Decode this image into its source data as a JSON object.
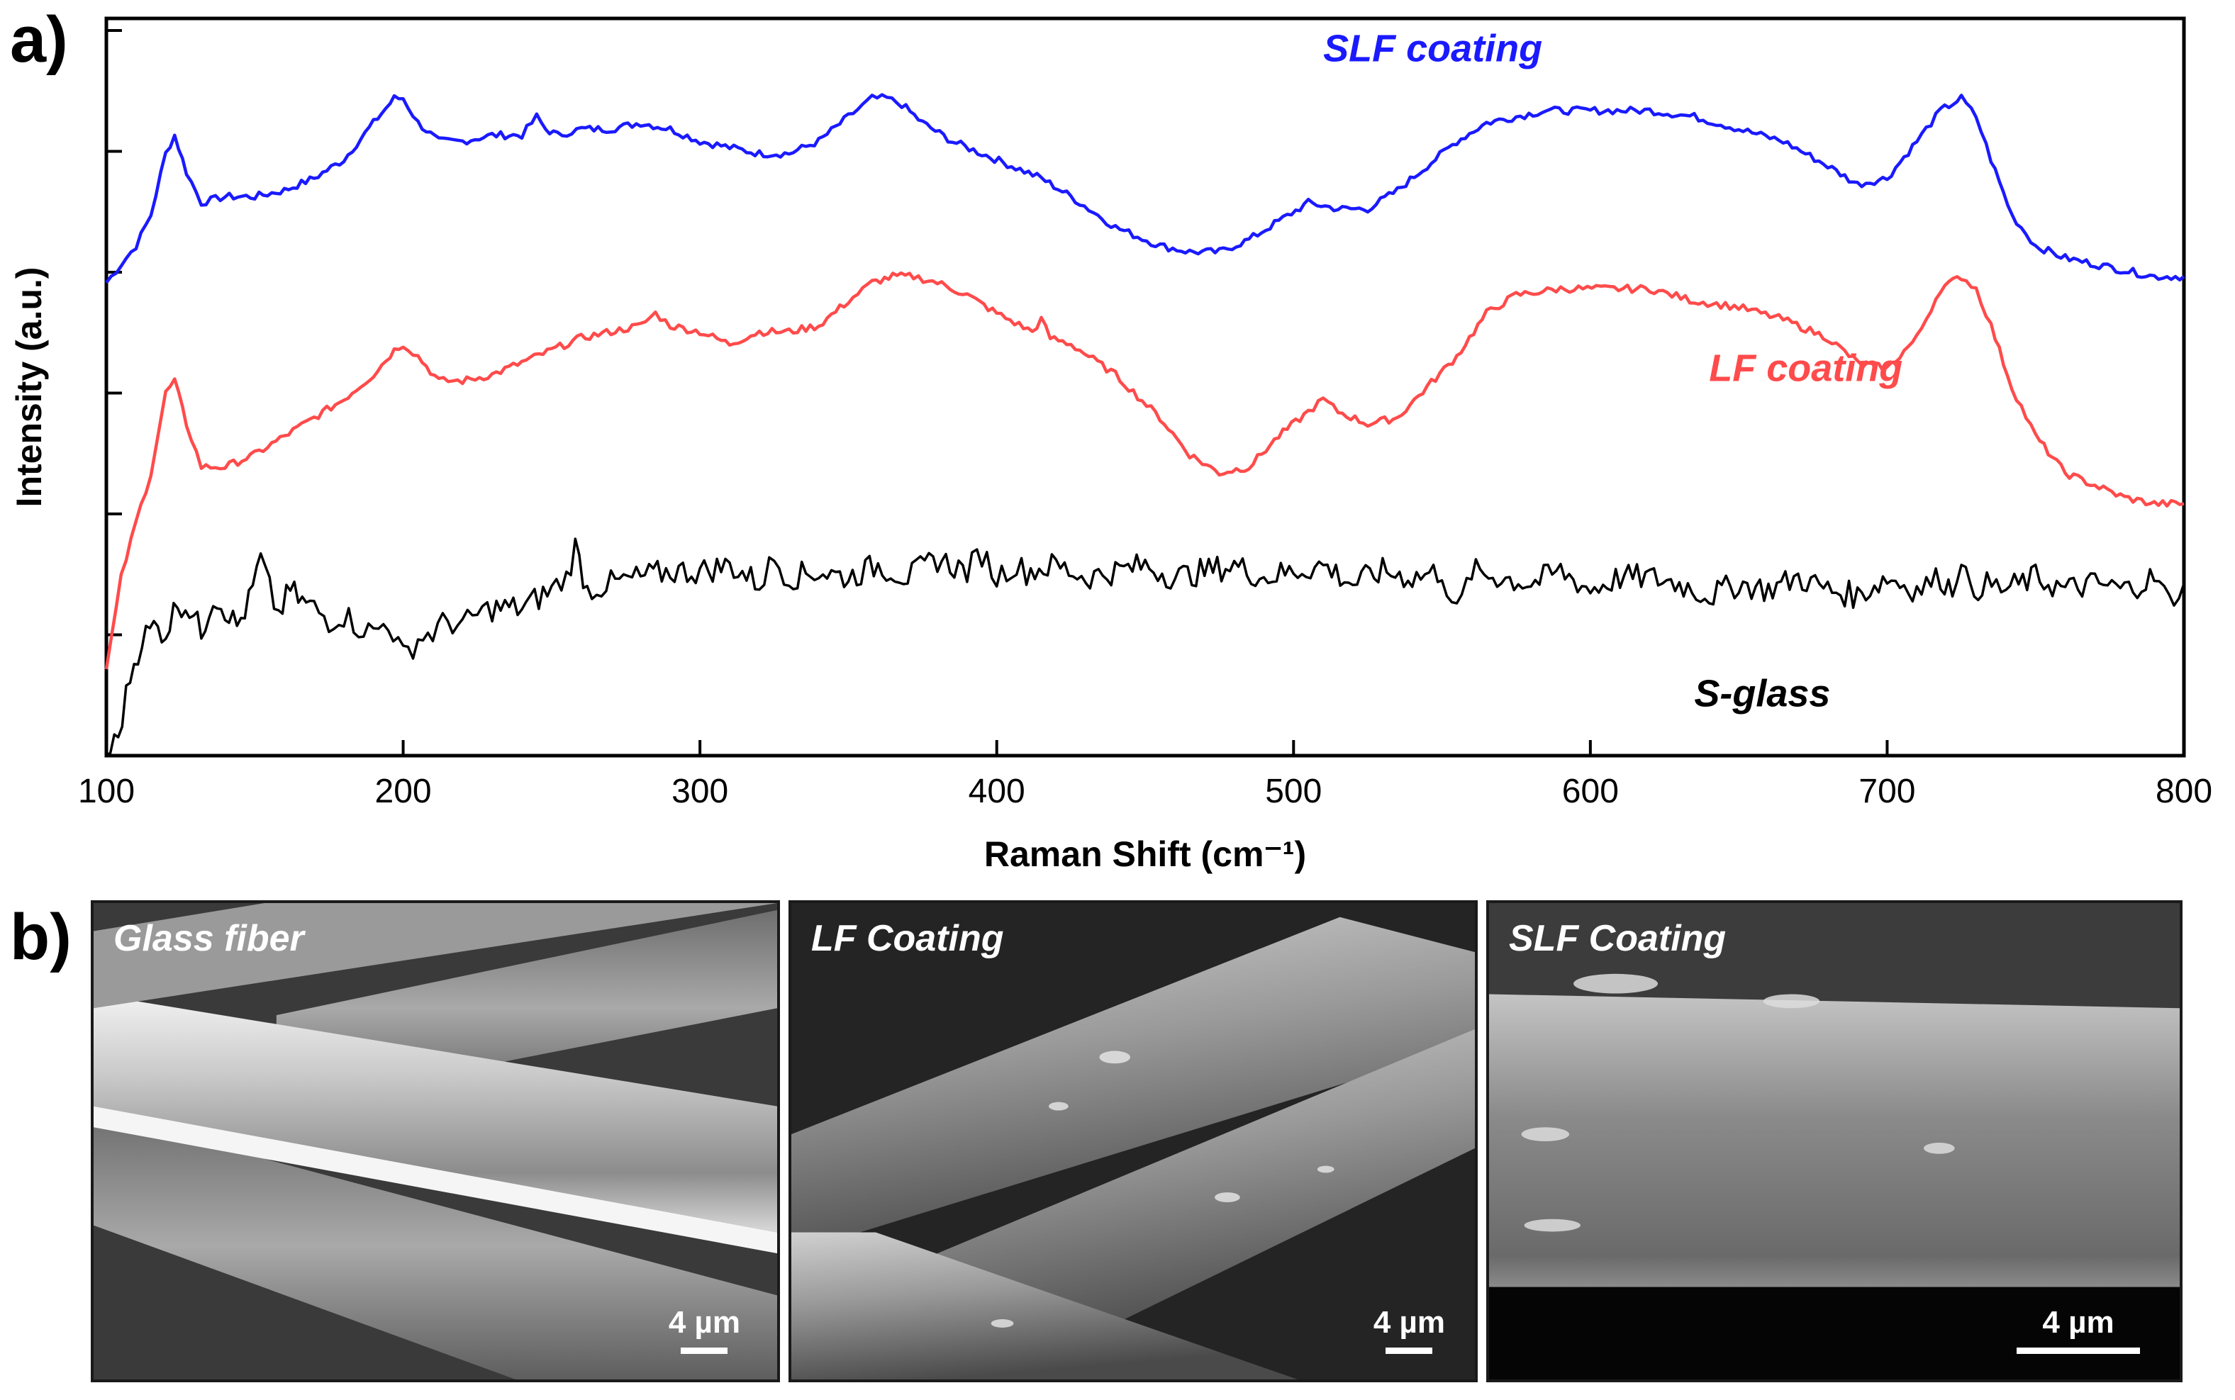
{
  "panel_labels": {
    "a": "a)",
    "b": "b)"
  },
  "chart_data": {
    "type": "line",
    "title": "",
    "xlabel": "Raman Shift (cm⁻¹)",
    "ylabel": "Intensity (a.u.)",
    "xlim": [
      100,
      800
    ],
    "ylim": [
      0,
      12
    ],
    "xticks": [
      100,
      200,
      300,
      400,
      500,
      600,
      700,
      800
    ],
    "ytick_count": 7,
    "grid": false,
    "legend": "inline labels",
    "series": [
      {
        "name": "SLF coating",
        "color": "#1a1aff",
        "label_at": [
          510,
          11.3
        ],
        "x": [
          100,
          105,
          110,
          115,
          120,
          123,
          127,
          132,
          140,
          150,
          160,
          170,
          180,
          190,
          197,
          200,
          205,
          212,
          220,
          230,
          240,
          245,
          248,
          252,
          260,
          270,
          280,
          290,
          300,
          310,
          320,
          330,
          340,
          350,
          358,
          363,
          368,
          375,
          385,
          395,
          405,
          415,
          425,
          440,
          455,
          465,
          475,
          485,
          495,
          505,
          515,
          525,
          535,
          545,
          555,
          565,
          575,
          585,
          600,
          615,
          620,
          635,
          650,
          665,
          680,
          690,
          700,
          710,
          718,
          725,
          730,
          735,
          742,
          750,
          760,
          770,
          780,
          790,
          800
        ],
        "y": [
          7.7,
          8.0,
          8.3,
          8.8,
          9.8,
          10.1,
          9.5,
          9.0,
          9.1,
          9.1,
          9.2,
          9.4,
          9.7,
          10.3,
          10.7,
          10.7,
          10.3,
          10.0,
          10.0,
          10.1,
          10.1,
          10.4,
          10.2,
          10.1,
          10.2,
          10.2,
          10.3,
          10.2,
          10.0,
          9.9,
          9.8,
          9.8,
          10.0,
          10.4,
          10.7,
          10.7,
          10.6,
          10.3,
          10.0,
          9.8,
          9.6,
          9.4,
          9.1,
          8.6,
          8.3,
          8.2,
          8.2,
          8.4,
          8.7,
          9.0,
          8.9,
          8.9,
          9.2,
          9.6,
          10.0,
          10.3,
          10.4,
          10.5,
          10.5,
          10.5,
          10.5,
          10.4,
          10.2,
          10.0,
          9.6,
          9.3,
          9.4,
          10.0,
          10.5,
          10.7,
          10.4,
          9.7,
          8.8,
          8.3,
          8.1,
          8.0,
          7.9,
          7.8,
          7.8
        ]
      },
      {
        "name": "LF coating",
        "color": "#ff4b4b",
        "label_at": [
          640,
          6.1
        ],
        "x": [
          100,
          105,
          110,
          115,
          120,
          123,
          127,
          132,
          140,
          150,
          160,
          170,
          180,
          190,
          197,
          200,
          205,
          212,
          220,
          230,
          240,
          250,
          260,
          270,
          280,
          285,
          290,
          300,
          310,
          320,
          330,
          340,
          350,
          358,
          365,
          372,
          380,
          390,
          400,
          412,
          415,
          418,
          425,
          440,
          455,
          465,
          475,
          485,
          495,
          505,
          510,
          515,
          525,
          535,
          545,
          555,
          565,
          575,
          590,
          605,
          620,
          635,
          650,
          665,
          680,
          690,
          700,
          710,
          718,
          725,
          730,
          735,
          742,
          750,
          760,
          770,
          780,
          790,
          800
        ],
        "y": [
          1.4,
          2.9,
          3.8,
          4.6,
          5.9,
          6.1,
          5.4,
          4.7,
          4.7,
          4.9,
          5.2,
          5.5,
          5.8,
          6.2,
          6.6,
          6.7,
          6.5,
          6.1,
          6.1,
          6.2,
          6.4,
          6.6,
          6.8,
          6.9,
          7.0,
          7.2,
          7.0,
          6.9,
          6.7,
          6.9,
          6.9,
          7.0,
          7.4,
          7.7,
          7.8,
          7.8,
          7.7,
          7.5,
          7.2,
          6.9,
          7.1,
          6.8,
          6.7,
          6.2,
          5.5,
          4.9,
          4.6,
          4.7,
          5.2,
          5.6,
          5.8,
          5.6,
          5.4,
          5.5,
          6.0,
          6.5,
          7.2,
          7.5,
          7.6,
          7.6,
          7.6,
          7.4,
          7.3,
          7.1,
          6.8,
          6.4,
          6.3,
          6.8,
          7.6,
          7.8,
          7.6,
          7.0,
          6.0,
          5.2,
          4.6,
          4.4,
          4.2,
          4.1,
          4.1
        ]
      },
      {
        "name": "S-glass",
        "color": "#000000",
        "label_at": [
          635,
          0.8
        ],
        "x": [
          100,
          104,
          108,
          112,
          116,
          120,
          124,
          128,
          132,
          136,
          140,
          144,
          148,
          152,
          155,
          158,
          162,
          166,
          170,
          175,
          180,
          185,
          190,
          195,
          200,
          205,
          210,
          215,
          220,
          225,
          230,
          240,
          250,
          255,
          258,
          262,
          270,
          280,
          290,
          300,
          310,
          320,
          325,
          330,
          340,
          350,
          360,
          370,
          380,
          390,
          395,
          400,
          405,
          410,
          420,
          430,
          440,
          450,
          460,
          470,
          480,
          490,
          500,
          510,
          520,
          530,
          540,
          550,
          555,
          560,
          570,
          580,
          590,
          600,
          610,
          620,
          630,
          640,
          650,
          660,
          670,
          680,
          690,
          700,
          710,
          718,
          722,
          725,
          728,
          732,
          740,
          750,
          760,
          770,
          780,
          790,
          795,
          800
        ],
        "y": [
          0.0,
          0.3,
          1.3,
          1.9,
          2.1,
          2.0,
          2.5,
          2.4,
          2.0,
          2.6,
          2.4,
          2.1,
          2.5,
          3.2,
          2.7,
          2.3,
          2.7,
          2.5,
          2.4,
          2.2,
          2.3,
          2.1,
          2.0,
          2.2,
          1.6,
          1.9,
          2.0,
          2.2,
          2.1,
          2.3,
          2.4,
          2.4,
          2.7,
          2.9,
          3.4,
          2.7,
          2.8,
          2.9,
          3.0,
          3.0,
          3.1,
          2.8,
          3.2,
          2.9,
          3.0,
          2.9,
          3.1,
          2.9,
          3.2,
          3.0,
          3.3,
          2.9,
          3.1,
          3.0,
          3.1,
          2.9,
          3.0,
          3.1,
          2.9,
          3.0,
          3.1,
          2.9,
          3.0,
          3.1,
          2.8,
          3.0,
          2.9,
          3.0,
          2.3,
          3.0,
          2.9,
          2.8,
          3.0,
          2.7,
          2.9,
          2.9,
          2.8,
          2.6,
          2.8,
          2.7,
          2.9,
          2.7,
          2.6,
          2.9,
          2.7,
          2.9,
          2.7,
          3.3,
          2.6,
          2.8,
          2.7,
          2.9,
          2.7,
          2.8,
          2.7,
          2.9,
          2.5,
          2.8
        ]
      }
    ]
  },
  "sem_panels": [
    {
      "label": "Glass fiber",
      "scalebar_text": "4 µm"
    },
    {
      "label": "LF Coating",
      "scalebar_text": "4 µm"
    },
    {
      "label": "SLF Coating",
      "scalebar_text": "4 µm"
    }
  ]
}
